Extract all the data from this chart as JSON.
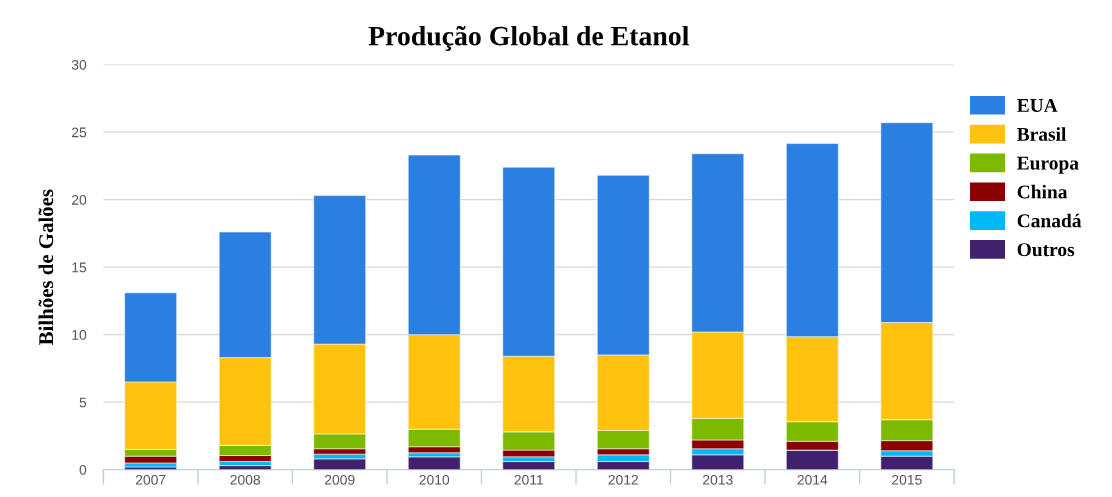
{
  "chart_data": {
    "type": "bar",
    "title": "Produção Global de Etanol",
    "ylabel": "Bilhões de Galões",
    "categories": [
      "2007",
      "2008",
      "2009",
      "2010",
      "2011",
      "2012",
      "2013",
      "2014",
      "2015"
    ],
    "stacked": true,
    "ylim": [
      0,
      30
    ],
    "yticks": [
      0,
      5,
      10,
      15,
      20,
      25,
      30
    ],
    "grid": "y",
    "legend": "right",
    "series": [
      {
        "name": "Outros",
        "color": "#40216e",
        "values": [
          0.2,
          0.3,
          0.8,
          0.95,
          0.6,
          0.6,
          1.1,
          1.45,
          1.0
        ]
      },
      {
        "name": "Canadá",
        "color": "#00b8f5",
        "values": [
          0.3,
          0.3,
          0.35,
          0.3,
          0.35,
          0.5,
          0.45,
          null,
          0.4
        ]
      },
      {
        "name": "China",
        "color": "#8b0000",
        "values": [
          0.5,
          0.45,
          0.4,
          0.45,
          0.5,
          0.45,
          0.65,
          0.65,
          0.75
        ]
      },
      {
        "name": "Europa",
        "color": "#7cba00",
        "values": [
          0.5,
          0.75,
          1.1,
          1.3,
          1.35,
          1.35,
          1.6,
          1.45,
          1.55
        ]
      },
      {
        "name": "Brasil",
        "color": "#ffc20e",
        "values": [
          5.0,
          6.5,
          6.65,
          7.0,
          5.6,
          5.6,
          6.4,
          6.3,
          7.2
        ]
      },
      {
        "name": "EUA",
        "color": "#2a7fe0",
        "values": [
          6.6,
          9.3,
          11.0,
          13.3,
          14.0,
          13.3,
          13.2,
          14.3,
          14.8
        ]
      }
    ]
  }
}
